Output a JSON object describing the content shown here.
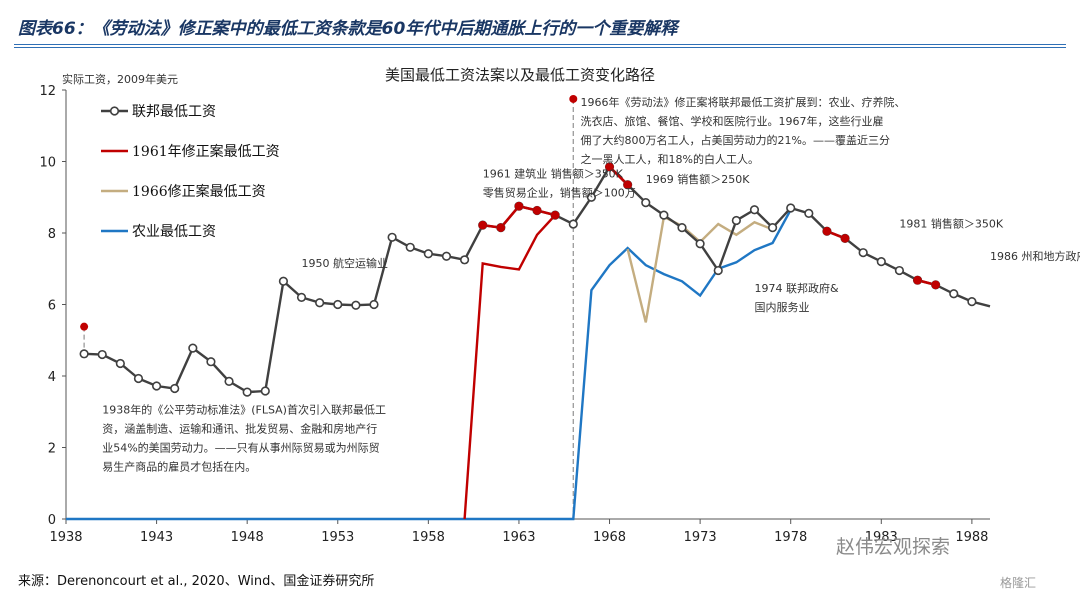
{
  "figure_title": "图表66：《劳动法》修正案中的最低工资条款是60年代中后期通胀上行的一个重要解释",
  "source": "来源：Derenoncourt et al., 2020、Wind、国金证券研究所",
  "watermark": "赵伟宏观探索",
  "logo_text": "格隆汇",
  "colors": {
    "federal": "#404040",
    "amend1961": "#c00000",
    "amend1966": "#c4ad80",
    "agriculture": "#1f77c4",
    "marker": "#c00000",
    "title_blue": "#1a3764"
  },
  "chart_data": {
    "type": "line",
    "title": "美国最低工资法案以及最低工资变化路径",
    "ylabel": "实际工资，2009年美元",
    "xlim": [
      1938,
      1989
    ],
    "ylim": [
      0,
      12
    ],
    "x_ticks": [
      1938,
      1943,
      1948,
      1953,
      1958,
      1963,
      1968,
      1973,
      1978,
      1983,
      1988
    ],
    "y_ticks": [
      0,
      2,
      4,
      6,
      8,
      10,
      12
    ],
    "legend": [
      "联邦最低工资",
      "1961年修正案最低工资",
      "1966修正案最低工资",
      "农业最低工资"
    ],
    "legend_position": "top-left",
    "series": [
      {
        "name": "联邦最低工资",
        "x": [
          1939,
          1940,
          1941,
          1942,
          1943,
          1944,
          1945,
          1946,
          1947,
          1948,
          1949,
          1950,
          1951,
          1952,
          1953,
          1954,
          1955,
          1956,
          1957,
          1958,
          1959,
          1960,
          1961,
          1962,
          1963,
          1964,
          1965,
          1966,
          1967,
          1968,
          1969,
          1970,
          1971,
          1972,
          1973,
          1974,
          1975,
          1976,
          1977,
          1978,
          1979,
          1980,
          1981,
          1982,
          1983,
          1984,
          1985,
          1986,
          1987,
          1988
        ],
        "y": [
          4.62,
          4.6,
          4.35,
          3.93,
          3.72,
          3.65,
          4.78,
          4.4,
          3.85,
          3.55,
          3.58,
          6.65,
          6.2,
          6.05,
          6.0,
          5.98,
          6.0,
          7.88,
          7.6,
          7.42,
          7.35,
          7.25,
          8.22,
          8.15,
          8.75,
          8.63,
          8.5,
          8.25,
          9.0,
          9.85,
          9.35,
          8.85,
          8.5,
          8.15,
          7.7,
          6.95,
          8.35,
          8.65,
          8.15,
          8.7,
          8.55,
          8.05,
          7.85,
          7.45,
          7.2,
          6.95,
          6.68,
          6.55,
          6.3,
          6.08
        ],
        "end_x": 1989,
        "end_y": 5.95,
        "markers": "hollow-circle"
      },
      {
        "name": "1961年修正案最低工资",
        "x": [
          1960,
          1961,
          1962,
          1963,
          1964,
          1965
        ],
        "y": [
          0,
          7.15,
          7.05,
          6.98,
          7.95,
          8.5
        ]
      },
      {
        "name": "1966修正案最低工资",
        "x": [
          1969,
          1970,
          1971,
          1972,
          1973,
          1974,
          1975,
          1976,
          1977
        ],
        "y": [
          7.55,
          5.5,
          8.45,
          8.2,
          7.75,
          8.25,
          7.95,
          8.3,
          8.1
        ]
      },
      {
        "name": "农业最低工资",
        "x": [
          1938,
          1966,
          1967,
          1968,
          1969,
          1970,
          1971,
          1972,
          1973,
          1974,
          1975,
          1976,
          1977,
          1978
        ],
        "y": [
          0,
          0,
          6.4,
          7.1,
          7.58,
          7.1,
          6.85,
          6.65,
          6.25,
          7.0,
          7.18,
          7.52,
          7.72,
          8.65
        ]
      }
    ],
    "red_segments": [
      {
        "x": [
          1961,
          1962,
          1963,
          1964,
          1965
        ],
        "y": [
          8.22,
          8.15,
          8.75,
          8.63,
          8.5
        ]
      },
      {
        "x": [
          1968,
          1969
        ],
        "y": [
          9.85,
          9.35
        ]
      },
      {
        "x": [
          1980,
          1981
        ],
        "y": [
          8.05,
          7.85
        ]
      },
      {
        "x": [
          1985,
          1986
        ],
        "y": [
          6.68,
          6.55
        ]
      }
    ],
    "milestones": [
      {
        "x": 1939,
        "y": 5.38,
        "line_to": 4.62
      },
      {
        "x": 1966,
        "y": 11.75,
        "line_to": 0
      }
    ],
    "annotations": [
      {
        "text": [
          "1950 航空运输业"
        ],
        "x": 1951,
        "y": 7.05
      },
      {
        "text": [
          "1961 建筑业 销售额＞350K",
          "零售贸易企业，销售额＞100万"
        ],
        "x": 1961,
        "y": 9.55
      },
      {
        "text": [
          "1969 销售额＞250K"
        ],
        "x": 1970,
        "y": 9.4
      },
      {
        "text": [
          "1966年《劳动法》修正案将联邦最低工资扩展到：农业、疗养院、",
          "洗衣店、旅馆、餐馆、学校和医院行业。1967年，这些行业雇",
          "佣了大约800万名工人，占美国劳动力的21%。——覆盖近三分",
          "之一黑人工人，和18%的白人工人。"
        ],
        "x": 1966.4,
        "y": 11.55
      },
      {
        "text": [
          "1974 联邦政府&",
          "国内服务业"
        ],
        "x": 1976,
        "y": 6.35
      },
      {
        "text": [
          "1981 销售额＞350K"
        ],
        "x": 1984,
        "y": 8.15
      },
      {
        "text": [
          "1986 州和地方政府"
        ],
        "x": 1989,
        "y": 7.25
      },
      {
        "text": [
          "1938年的《公平劳动标准法》(FLSA)首次引入联邦最低工",
          "资，涵盖制造、运输和通讯、批发贸易、金融和房地产行",
          "业54%的美国劳动力。——只有从事州际贸易或为州际贸",
          "易生产商品的雇员才包括在内。"
        ],
        "x": 1940,
        "y": 2.95
      }
    ]
  }
}
